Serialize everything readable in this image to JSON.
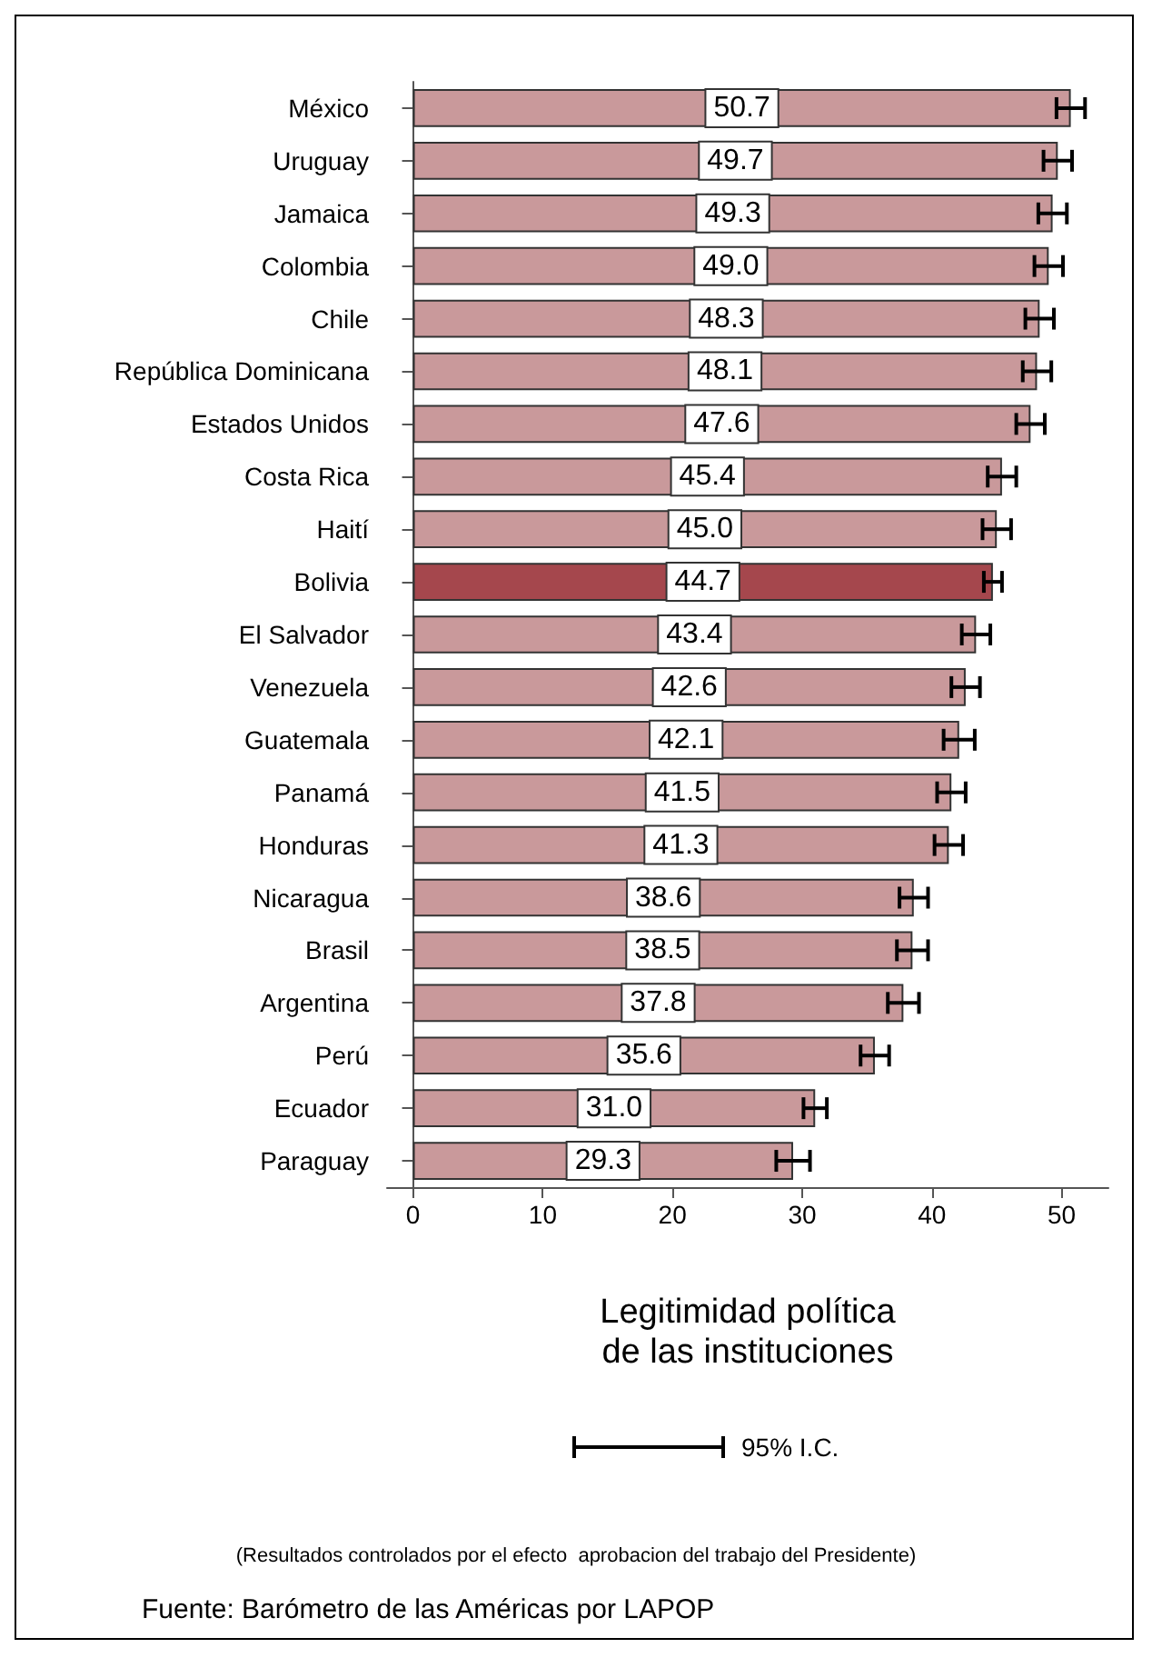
{
  "chart_data": {
    "type": "bar",
    "orientation": "horizontal",
    "categories": [
      "México",
      "Uruguay",
      "Jamaica",
      "Colombia",
      "Chile",
      "República Dominicana",
      "Estados Unidos",
      "Costa Rica",
      "Haití",
      "Bolivia",
      "El Salvador",
      "Venezuela",
      "Guatemala",
      "Panamá",
      "Honduras",
      "Nicaragua",
      "Brasil",
      "Argentina",
      "Perú",
      "Ecuador",
      "Paraguay"
    ],
    "values": [
      50.7,
      49.7,
      49.3,
      49.0,
      48.3,
      48.1,
      47.6,
      45.4,
      45.0,
      44.7,
      43.4,
      42.6,
      42.1,
      41.5,
      41.3,
      38.6,
      38.5,
      37.8,
      35.6,
      31.0,
      29.3
    ],
    "value_labels": [
      "50.7",
      "49.7",
      "49.3",
      "49.0",
      "48.3",
      "48.1",
      "47.6",
      "45.4",
      "45.0",
      "44.7",
      "43.4",
      "42.6",
      "42.1",
      "41.5",
      "41.3",
      "38.6",
      "38.5",
      "37.8",
      "35.6",
      "31.0",
      "29.3"
    ],
    "errors": [
      1.1,
      1.1,
      1.1,
      1.1,
      1.1,
      1.1,
      1.1,
      1.1,
      1.1,
      0.7,
      1.1,
      1.1,
      1.2,
      1.1,
      1.1,
      1.1,
      1.2,
      1.2,
      1.1,
      0.9,
      1.3
    ],
    "colors": [
      "#c9999b",
      "#c9999b",
      "#c9999b",
      "#c9999b",
      "#c9999b",
      "#c9999b",
      "#c9999b",
      "#c9999b",
      "#c9999b",
      "#a5474d",
      "#c9999b",
      "#c9999b",
      "#c9999b",
      "#c9999b",
      "#c9999b",
      "#c9999b",
      "#c9999b",
      "#c9999b",
      "#c9999b",
      "#c9999b",
      "#c9999b"
    ],
    "xlim": [
      -2,
      53.6
    ],
    "xticks": [
      0,
      10,
      20,
      30,
      40,
      50
    ],
    "xlabel": "Legitimidad política\nde las instituciones",
    "annotations": [
      "95% I.C.",
      "(Resultados controlados por el efecto  aprobacion del trabajo del Presidente)",
      "Fuente: Barómetro de las Américas por LAPOP"
    ]
  }
}
